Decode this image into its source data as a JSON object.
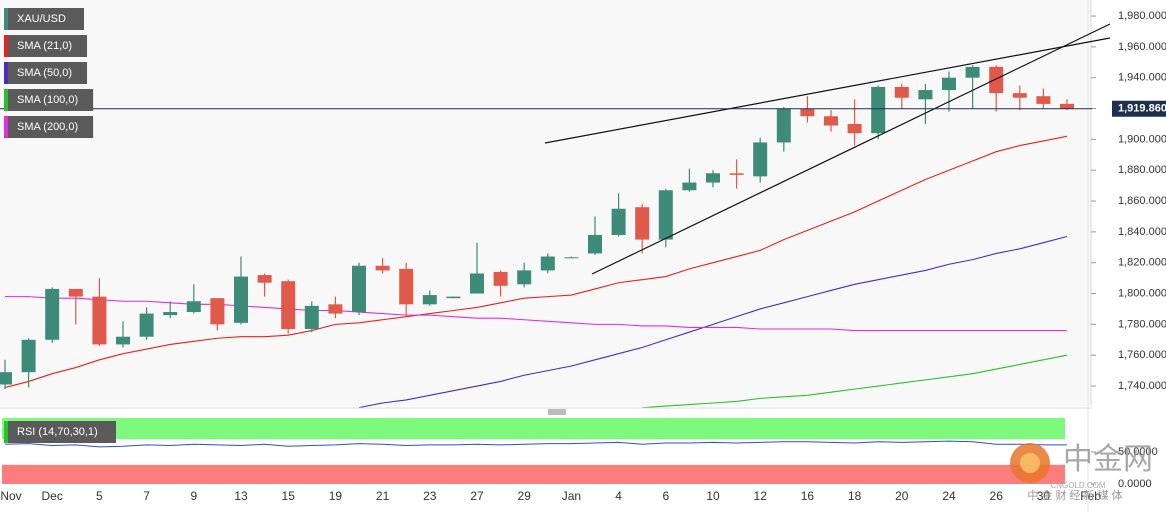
{
  "chart_data": {
    "type": "candlestick",
    "categories": [
      "Nov",
      null,
      "Dec",
      null,
      "5",
      null,
      "7",
      null,
      "9",
      null,
      "13",
      null,
      "15",
      null,
      "19",
      null,
      "21",
      null,
      "23",
      null,
      "27",
      null,
      "29",
      null,
      "Jan",
      null,
      "4",
      null,
      "6",
      null,
      "10",
      null,
      "12",
      null,
      "16",
      null,
      "18",
      null,
      "20",
      null,
      "24",
      null,
      "26",
      null,
      "30",
      null,
      "Feb"
    ],
    "series": [
      {
        "name": "XAU/USD",
        "color": "#3d8b78",
        "color_up": "#3d8b78",
        "color_down": "#e05a4b",
        "open": [
          1741,
          1749,
          1770,
          1803,
          1798,
          1767,
          1772,
          1786,
          1788,
          1797,
          1781,
          1812,
          1808,
          1777,
          1793,
          1788,
          1818,
          1816,
          1793,
          1797,
          1800,
          1814,
          1806,
          1815,
          1823.5,
          1826,
          1838,
          1856,
          1835,
          1867,
          1872,
          1878,
          1876,
          1898,
          1920,
          1915,
          1910,
          1904,
          1934,
          1926,
          1932,
          1940,
          1947,
          1930,
          1928,
          1923,
          null
        ],
        "high": [
          1757,
          1771,
          1804,
          1803,
          1810,
          1782,
          1791,
          1795,
          1806,
          1797,
          1824,
          1813,
          1809,
          1795,
          1798,
          1820,
          1823,
          1820,
          1802,
          1798,
          1833,
          1815,
          1820,
          1826,
          1824,
          1850,
          1865,
          1858,
          1868,
          1881,
          1880,
          1887,
          1901,
          1921,
          1928,
          1919,
          1926,
          1935,
          1936,
          1936,
          1944,
          1948,
          1948,
          1935,
          1933,
          1926,
          null
        ],
        "low": [
          1738,
          1739,
          1768,
          1780,
          1766,
          1765,
          1770,
          1784,
          1787,
          1776,
          1780,
          1798,
          1774,
          1775,
          1784,
          1786,
          1813,
          1785,
          1792,
          1797,
          1800,
          1798,
          1804,
          1813,
          1823,
          1825,
          1837,
          1826,
          1830,
          1866,
          1869,
          1868,
          1872,
          1892,
          1911,
          1905,
          1896,
          1900,
          1920,
          1910,
          1918,
          1920,
          1918,
          1919,
          1920,
          1919,
          null
        ],
        "close": [
          1749,
          1770,
          1803,
          1798,
          1767,
          1772,
          1787,
          1788,
          1795,
          1780,
          1811,
          1807,
          1777,
          1792,
          1787,
          1818,
          1815,
          1793,
          1799,
          1798,
          1813,
          1805,
          1815,
          1824,
          1823.5,
          1838,
          1855,
          1835,
          1867,
          1872,
          1878,
          1877,
          1898,
          1920,
          1915,
          1909,
          1904,
          1934,
          1927,
          1932,
          1940,
          1947,
          1930,
          1927,
          1923,
          1920,
          null
        ]
      }
    ],
    "overlays": [
      {
        "name": "SMA (21,0)",
        "color": "#e3241b",
        "values": [
          1739,
          1743,
          1748,
          1752,
          1757,
          1761,
          1764,
          1767,
          1769,
          1771,
          1772,
          1772,
          1773,
          1776,
          1780,
          1781,
          1783,
          1785,
          1787,
          1789,
          1791,
          1794,
          1797,
          1798,
          1799,
          1803,
          1807,
          1809,
          1811,
          1816,
          1820,
          1824,
          1828,
          1835,
          1841,
          1847,
          1853,
          1860,
          1867,
          1874,
          1880,
          1886,
          1892,
          1896,
          1899,
          1902,
          null
        ]
      },
      {
        "name": "SMA (50,0)",
        "color": "#4b2bc2",
        "values": [
          null,
          null,
          null,
          null,
          null,
          null,
          null,
          null,
          null,
          null,
          null,
          null,
          null,
          null,
          null,
          1726,
          1729,
          1731,
          1734,
          1737,
          1740,
          1743,
          1747,
          1750,
          1753,
          1757,
          1761,
          1765,
          1770,
          1775,
          1780,
          1785,
          1790,
          1794,
          1798,
          1802,
          1806,
          1809,
          1812,
          1815,
          1819,
          1822,
          1826,
          1829,
          1833,
          1837,
          null
        ]
      },
      {
        "name": "SMA (100,0)",
        "color": "#2cc02c",
        "values": [
          null,
          null,
          null,
          null,
          null,
          null,
          null,
          null,
          null,
          null,
          null,
          null,
          null,
          null,
          null,
          null,
          null,
          null,
          null,
          null,
          null,
          null,
          null,
          null,
          null,
          null,
          null,
          1726,
          1727,
          1728,
          1729,
          1730,
          1732,
          1733,
          1734,
          1736,
          1738,
          1740,
          1742,
          1744,
          1746,
          1748,
          1751,
          1754,
          1757,
          1760,
          null
        ]
      },
      {
        "name": "SMA (200,0)",
        "color": "#e02ee0",
        "values": [
          1798,
          1798,
          1797,
          1797,
          1796,
          1795,
          1795,
          1794,
          1793,
          1793,
          1792,
          1791,
          1790,
          1789,
          1789,
          1788,
          1787,
          1786,
          1786,
          1785,
          1784,
          1784,
          1783,
          1782,
          1781,
          1780,
          1780,
          1779,
          1779,
          1778,
          1778,
          1778,
          1777,
          1777,
          1777,
          1777,
          1776,
          1776,
          1776,
          1776,
          1776,
          1776,
          1776,
          1776,
          1776,
          1776,
          null
        ]
      }
    ],
    "ylim": [
      1727.7,
      1990.4
    ],
    "yticks": [
      {
        "value": 1740,
        "label": "1,740.000"
      },
      {
        "value": 1760,
        "label": "1,760.000"
      },
      {
        "value": 1780,
        "label": "1,780.000"
      },
      {
        "value": 1800,
        "label": "1,800.000"
      },
      {
        "value": 1820,
        "label": "1,820.000"
      },
      {
        "value": 1840,
        "label": "1,840.000"
      },
      {
        "value": 1860,
        "label": "1,860.000"
      },
      {
        "value": 1880,
        "label": "1,880.000"
      },
      {
        "value": 1900,
        "label": "1,900.000"
      },
      {
        "value": 1920,
        "label": "1,920.000"
      },
      {
        "value": 1940,
        "label": "1,940.000"
      },
      {
        "value": 1960,
        "label": "1,960.000"
      },
      {
        "value": 1980,
        "label": "1,980.000"
      }
    ],
    "last_price": {
      "value": 1919.86,
      "label": "1,919.860"
    },
    "indicator": {
      "name": "RSI (14,70,30,1)",
      "color": "#2b4fd6",
      "upper": 70,
      "lower": 30,
      "upper_color": "#7dfa7d",
      "lower_color": "#fb7d7d",
      "values": [
        62,
        63,
        60,
        61,
        58,
        59,
        61,
        60,
        62,
        61,
        60,
        62,
        59,
        60,
        61,
        63,
        62,
        60,
        61,
        61,
        62,
        61,
        62,
        63,
        63,
        64,
        65,
        62,
        64,
        64,
        65,
        64,
        65,
        66,
        66,
        65,
        64,
        66,
        65,
        66,
        67,
        66,
        62,
        62,
        61,
        61,
        null
      ],
      "ylim": [
        0,
        103
      ],
      "yticks": [
        {
          "value": 0,
          "label": "0.0000"
        },
        {
          "value": 50,
          "label": "50.0000"
        }
      ]
    }
  },
  "watermark": {
    "title": "中金网",
    "subtitle": "中 金 财 经 新 媒 体",
    "site": "CNGOLD.COM"
  }
}
